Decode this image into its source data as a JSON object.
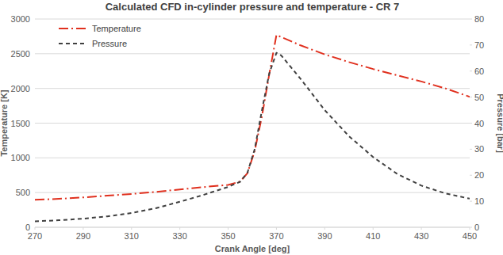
{
  "chart_data": {
    "type": "line",
    "title": "Calculated CFD in-cylinder pressure and temperature - CR 7",
    "x_label": "Crank Angle [deg]",
    "y_label": "Temperature [K]",
    "y2_label": "Pressure [bar]",
    "x": [
      270,
      280,
      290,
      300,
      310,
      320,
      330,
      340,
      350,
      355,
      358,
      361,
      364,
      367,
      370,
      372,
      380,
      390,
      400,
      410,
      420,
      430,
      440,
      450
    ],
    "series": [
      {
        "name": "Temperature",
        "color": "#e0301e",
        "line_style": "dashdot",
        "values": [
          395,
          410,
          430,
          455,
          480,
          510,
          545,
          580,
          610,
          660,
          780,
          1100,
          1600,
          2200,
          2770,
          2740,
          2620,
          2490,
          2380,
          2280,
          2190,
          2100,
          2000,
          1880
        ]
      },
      {
        "name": "Pressure",
        "color": "#404040",
        "line_style": "dashed",
        "axis": "y2",
        "values": [
          2.3,
          2.7,
          3.3,
          4.2,
          5.5,
          7.3,
          9.8,
          12.5,
          15.5,
          17.5,
          21,
          30,
          45,
          59,
          67,
          66,
          57,
          45,
          35,
          27,
          20.5,
          16,
          13,
          11
        ]
      }
    ],
    "xlim": [
      270,
      450
    ],
    "xticks": [
      270,
      290,
      310,
      330,
      350,
      370,
      390,
      410,
      430,
      450
    ],
    "ylim": [
      0,
      3000
    ],
    "yticks": [
      0,
      500,
      1000,
      1500,
      2000,
      2500,
      3000
    ],
    "y2lim": [
      0,
      80
    ],
    "y2ticks": [
      0,
      10,
      20,
      30,
      40,
      50,
      60,
      70,
      80
    ],
    "grid": true,
    "legend": "upper left"
  }
}
